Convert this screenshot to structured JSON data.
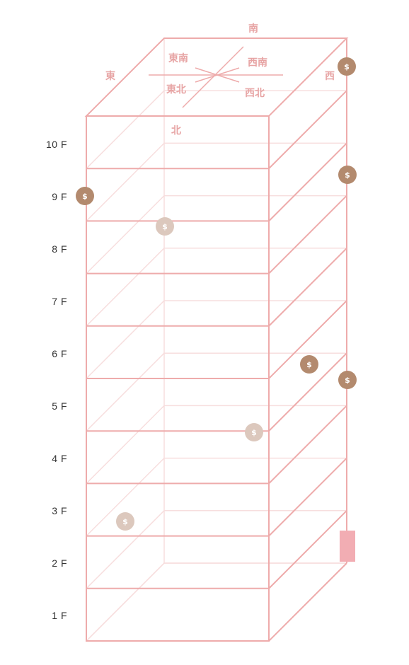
{
  "floors": [
    "1 F",
    "2 F",
    "3 F",
    "4 F",
    "5 F",
    "6 F",
    "7 F",
    "8 F",
    "9 F",
    "10 F"
  ],
  "directions": {
    "south": "南",
    "east": "東",
    "west": "西",
    "north": "北",
    "southeast": "東南",
    "southwest": "西南",
    "northeast": "東北",
    "northwest": "西北"
  },
  "coin_symbol": "$",
  "colors": {
    "frame": "#eeabab",
    "frame_light": "#f7d5d5",
    "label": "#e7a4a4",
    "coin_dark": "#b38a6e",
    "coin_light": "#dcc8bd",
    "door": "#f2adb3"
  }
}
